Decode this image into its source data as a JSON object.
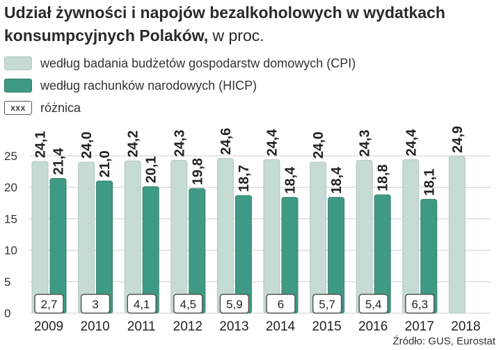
{
  "title": {
    "main": "Udział żywności i napojów bezalkoholowych w wydatkach konsumpcyjnych Polaków,",
    "unit": "w proc."
  },
  "legend": {
    "cpi": "według badania budżetów gospodarstw domowych (CPI)",
    "hicp": "według rachunków narodowych (HICP)",
    "diff_sample": "xxx",
    "diff": "różnica"
  },
  "source": "Źródło: GUS, Eurostat",
  "colors": {
    "cpi": "#c5dbd3",
    "hicp": "#3f9a85",
    "grid": "#cfcfcf",
    "text": "#222222"
  },
  "chart_data": {
    "type": "bar",
    "categories": [
      "2009",
      "2010",
      "2011",
      "2012",
      "2013",
      "2014",
      "2015",
      "2016",
      "2017",
      "2018"
    ],
    "series": [
      {
        "name": "według badania budżetów gospodarstw domowych (CPI)",
        "values": [
          24.1,
          24.0,
          24.2,
          24.3,
          24.6,
          24.4,
          24.0,
          24.3,
          24.4,
          24.9
        ],
        "labels": [
          "24,1",
          "24,0",
          "24,2",
          "24,3",
          "24,6",
          "24,4",
          "24,0",
          "24,3",
          "24,4",
          "24,9"
        ]
      },
      {
        "name": "według rachunków narodowych (HICP)",
        "values": [
          21.4,
          21.0,
          20.1,
          19.8,
          18.7,
          18.4,
          18.4,
          18.8,
          18.1,
          null
        ],
        "labels": [
          "21,4",
          "21,0",
          "20,1",
          "19,8",
          "18,7",
          "18,4",
          "18,4",
          "18,8",
          "18,1",
          ""
        ]
      }
    ],
    "difference": {
      "name": "różnica",
      "values": [
        2.7,
        3,
        4.1,
        4.5,
        5.9,
        6,
        5.7,
        5.4,
        6.3,
        null
      ],
      "labels": [
        "2,7",
        "3",
        "4,1",
        "4,5",
        "5,9",
        "6",
        "5,7",
        "5,4",
        "6,3",
        ""
      ]
    },
    "yticks": [
      0,
      5,
      10,
      15,
      20,
      25
    ],
    "ylim": [
      0,
      25
    ],
    "grid": true,
    "legend_position": "top-left"
  }
}
